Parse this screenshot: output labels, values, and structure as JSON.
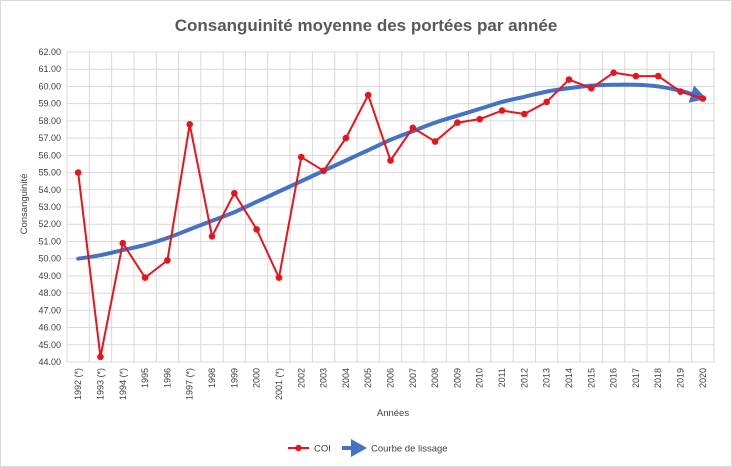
{
  "chart_data": {
    "type": "line",
    "title": "Consanguinité moyenne des portées par année",
    "xlabel": "Années",
    "ylabel": "Consanguinité",
    "ylim": [
      44,
      62
    ],
    "ytick_step": 1,
    "ytick_labels": [
      "44.00",
      "45.00",
      "46.00",
      "47.00",
      "48.00",
      "49.00",
      "50.00",
      "51.00",
      "52.00",
      "53.00",
      "54.00",
      "55.00",
      "56.00",
      "57.00",
      "58.00",
      "59.00",
      "60.00",
      "61.00",
      "62.00"
    ],
    "grid": true,
    "legend_position": "bottom",
    "categories": [
      "1992 (*)",
      "1993 (*)",
      "1994 (*)",
      "1995",
      "1996",
      "1997 (*)",
      "1998",
      "1999",
      "2000",
      "2001 (*)",
      "2002",
      "2003",
      "2004",
      "2005",
      "2006",
      "2007",
      "2008",
      "2009",
      "2010",
      "2011",
      "2012",
      "2013",
      "2014",
      "2015",
      "2016",
      "2017",
      "2018",
      "2019",
      "2020"
    ],
    "series": [
      {
        "name": "COI",
        "color": "#e8141c",
        "values": [
          55.0,
          44.3,
          50.9,
          48.9,
          49.9,
          57.8,
          51.3,
          53.8,
          51.7,
          48.9,
          55.9,
          55.1,
          57.0,
          59.5,
          55.7,
          57.6,
          56.8,
          57.9,
          58.1,
          58.6,
          58.4,
          59.1,
          60.4,
          59.9,
          60.8,
          60.6,
          60.6,
          59.7,
          59.3
        ]
      },
      {
        "name": "Courbe de lissage",
        "color": "#4472c4",
        "values": [
          50.0,
          50.2,
          50.5,
          50.8,
          51.2,
          51.7,
          52.2,
          52.7,
          53.3,
          53.9,
          54.5,
          55.1,
          55.7,
          56.3,
          56.9,
          57.4,
          57.9,
          58.3,
          58.7,
          59.1,
          59.4,
          59.7,
          59.9,
          60.05,
          60.1,
          60.1,
          60.0,
          59.75,
          59.35
        ]
      }
    ]
  }
}
